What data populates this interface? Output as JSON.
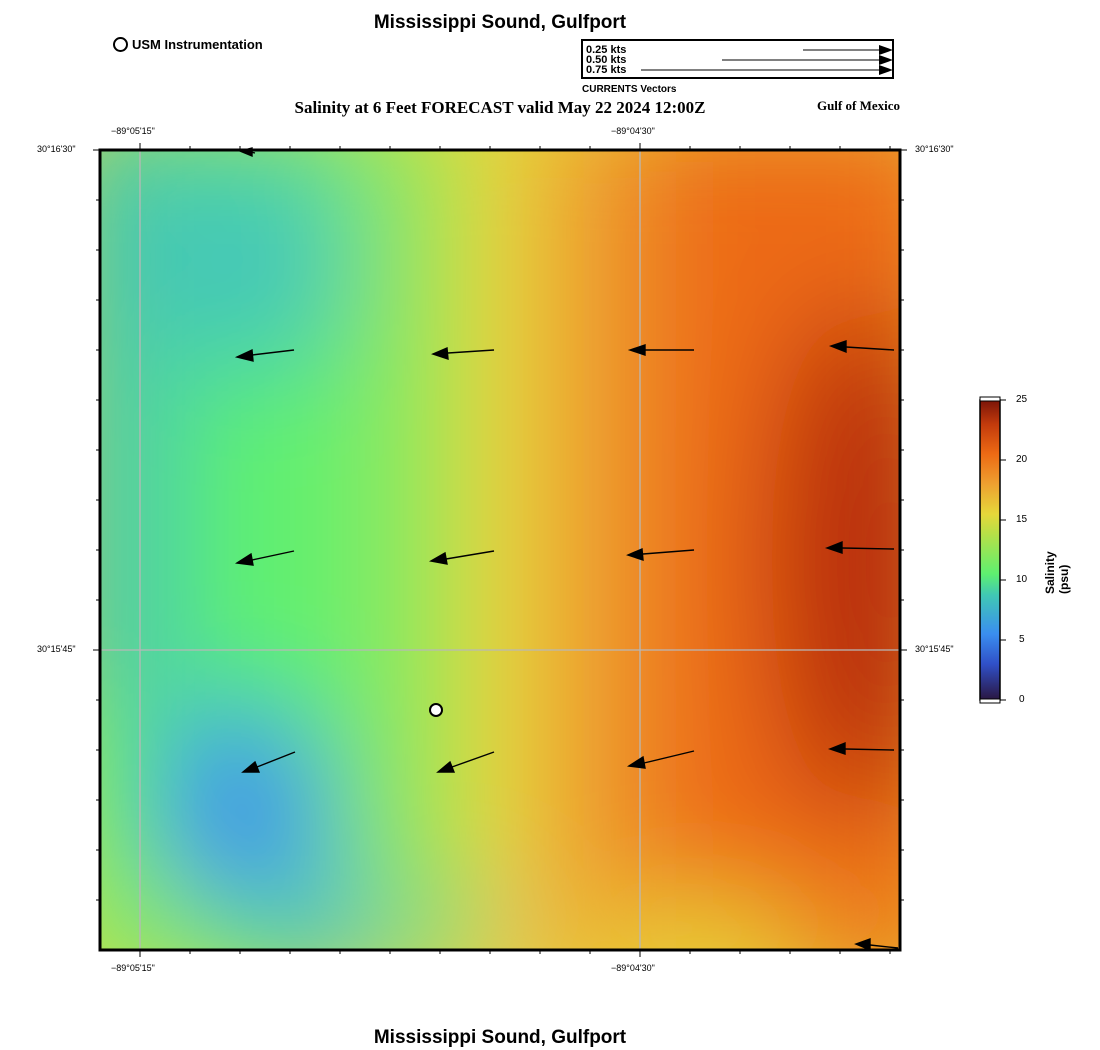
{
  "header": {
    "title": "Mississippi Sound, Gulfport",
    "subtitle": "Salinity at 6 Feet FORECAST valid May 22 2024 12:00Z",
    "region": "Gulf of Mexico",
    "footer_title": "Mississippi Sound, Gulfport"
  },
  "station_legend": {
    "label": "USM Instrumentation"
  },
  "vector_legend": {
    "title": "CURRENTS Vectors",
    "entries": [
      "0.25 kts",
      "0.50 kts",
      "0.75 kts"
    ]
  },
  "axes": {
    "lon_labels": [
      "−89°05'15\"",
      "−89°04'30\""
    ],
    "lat_labels": [
      "30°16'30\"",
      "30°15'45\""
    ]
  },
  "colorbar": {
    "title": "Salinity (psu)",
    "ticks": [
      "0",
      "5",
      "10",
      "15",
      "20",
      "25"
    ],
    "min": 0,
    "max": 25
  },
  "colors": {
    "fresh": "#3a8ef0",
    "mid": "#5ef070",
    "yellow": "#e6d83a",
    "orange": "#ed6a14",
    "salty": "#b82b0c"
  }
}
